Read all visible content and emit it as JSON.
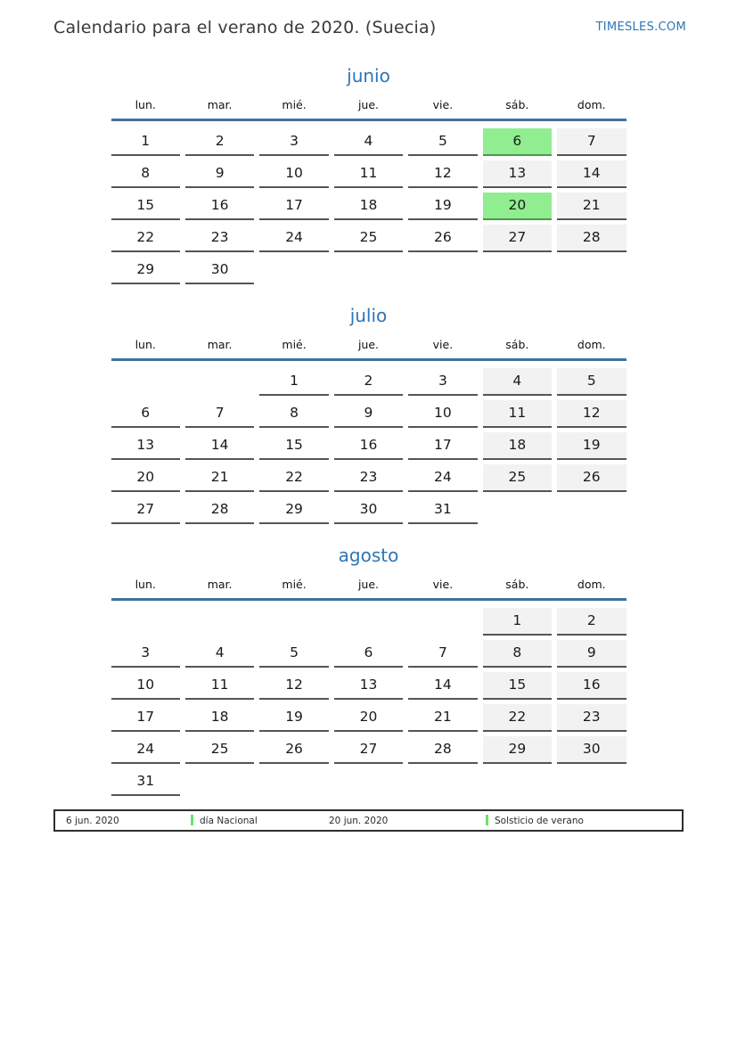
{
  "page": {
    "title": "Calendario para el verano de 2020. (Suecia)",
    "brand": "TIMESLES.COM"
  },
  "weekdays": [
    "lun.",
    "mar.",
    "mié.",
    "jue.",
    "vie.",
    "sáb.",
    "dom."
  ],
  "months": [
    {
      "name": "junio",
      "highlighted_days": [
        6,
        20
      ],
      "weeks": [
        [
          1,
          2,
          3,
          4,
          5,
          6,
          7
        ],
        [
          8,
          9,
          10,
          11,
          12,
          13,
          14
        ],
        [
          15,
          16,
          17,
          18,
          19,
          20,
          21
        ],
        [
          22,
          23,
          24,
          25,
          26,
          27,
          28
        ],
        [
          29,
          30,
          null,
          null,
          null,
          null,
          null
        ]
      ]
    },
    {
      "name": "julio",
      "highlighted_days": [],
      "weeks": [
        [
          null,
          null,
          1,
          2,
          3,
          4,
          5
        ],
        [
          6,
          7,
          8,
          9,
          10,
          11,
          12
        ],
        [
          13,
          14,
          15,
          16,
          17,
          18,
          19
        ],
        [
          20,
          21,
          22,
          23,
          24,
          25,
          26
        ],
        [
          27,
          28,
          29,
          30,
          31,
          null,
          null
        ]
      ]
    },
    {
      "name": "agosto",
      "highlighted_days": [],
      "weeks": [
        [
          null,
          null,
          null,
          null,
          null,
          1,
          2
        ],
        [
          3,
          4,
          5,
          6,
          7,
          8,
          9
        ],
        [
          10,
          11,
          12,
          13,
          14,
          15,
          16
        ],
        [
          17,
          18,
          19,
          20,
          21,
          22,
          23
        ],
        [
          24,
          25,
          26,
          27,
          28,
          29,
          30
        ],
        [
          31,
          null,
          null,
          null,
          null,
          null,
          null
        ]
      ]
    }
  ],
  "legend": {
    "items": [
      {
        "date": "6 jun. 2020",
        "label": "día Nacional"
      },
      {
        "date": "20 jun. 2020",
        "label": "Solsticio de verano"
      }
    ]
  },
  "colors": {
    "accent_blue": "#2e75b6",
    "header_line_blue": "#41719c",
    "highlight_green": "#90ee90",
    "legend_green": "#6be36b",
    "weekend_bg": "#f2f2f2"
  }
}
